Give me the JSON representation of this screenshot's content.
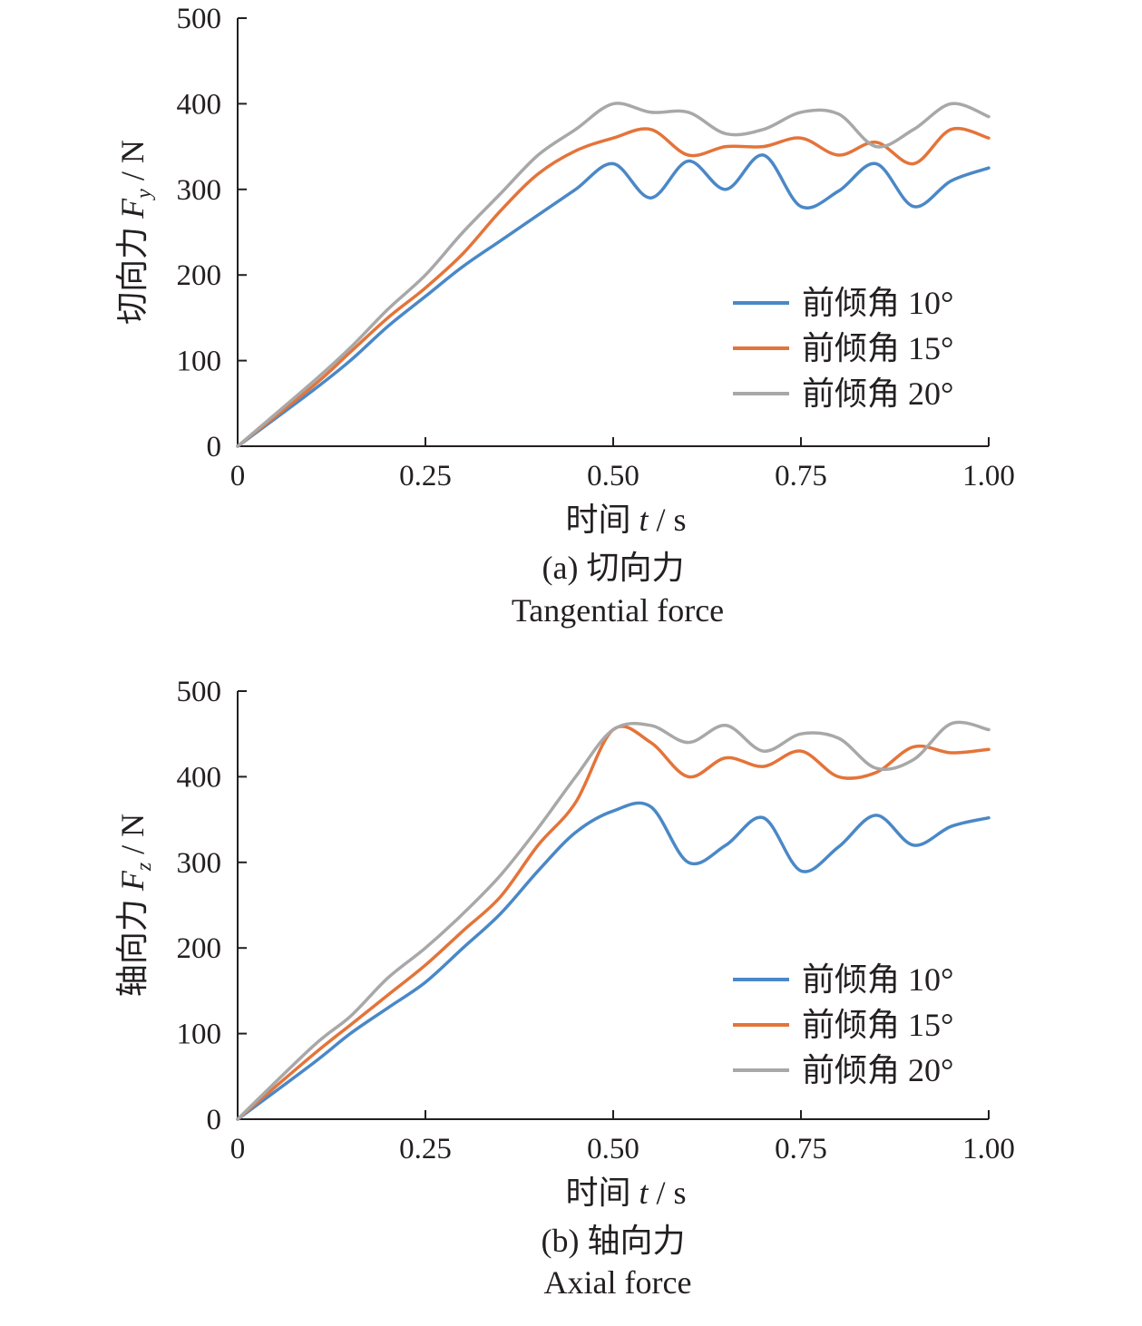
{
  "colors": {
    "s10": "#4a88c7",
    "s15": "#e4743a",
    "s20": "#a8a8a8",
    "axis": "#231f20"
  },
  "chart_data": [
    {
      "type": "line",
      "caption_label": "(a) 切向力",
      "caption_en": "Tangential force",
      "xlabel_text": "时间",
      "xlabel_var": "t",
      "xlabel_unit": " / s",
      "ylabel_text": "切向力",
      "ylabel_var": "F",
      "ylabel_sub": "y",
      "ylabel_unit": " / N",
      "xlim": [
        0,
        1.0
      ],
      "ylim": [
        0,
        500
      ],
      "xticks": [
        "0",
        "0.25",
        "0.50",
        "0.75",
        "1.00"
      ],
      "xtick_values": [
        0,
        0.25,
        0.5,
        0.75,
        1.0
      ],
      "yticks": [
        "0",
        "100",
        "200",
        "300",
        "400",
        "500"
      ],
      "ytick_values": [
        0,
        100,
        200,
        300,
        400,
        500
      ],
      "grid": false,
      "legend_position": "middle-right",
      "series": [
        {
          "name": "前倾角 10°",
          "color_key": "s10",
          "points": [
            [
              0,
              0
            ],
            [
              0.1,
              65
            ],
            [
              0.15,
              100
            ],
            [
              0.2,
              140
            ],
            [
              0.25,
              175
            ],
            [
              0.3,
              210
            ],
            [
              0.35,
              240
            ],
            [
              0.4,
              270
            ],
            [
              0.45,
              300
            ],
            [
              0.5,
              330
            ],
            [
              0.55,
              290
            ],
            [
              0.6,
              333
            ],
            [
              0.65,
              300
            ],
            [
              0.7,
              340
            ],
            [
              0.75,
              280
            ],
            [
              0.8,
              298
            ],
            [
              0.85,
              330
            ],
            [
              0.9,
              280
            ],
            [
              0.95,
              310
            ],
            [
              1.0,
              325
            ]
          ]
        },
        {
          "name": "前倾角 15°",
          "color_key": "s15",
          "points": [
            [
              0,
              0
            ],
            [
              0.1,
              70
            ],
            [
              0.15,
              110
            ],
            [
              0.2,
              150
            ],
            [
              0.25,
              185
            ],
            [
              0.3,
              225
            ],
            [
              0.35,
              275
            ],
            [
              0.4,
              318
            ],
            [
              0.45,
              345
            ],
            [
              0.5,
              360
            ],
            [
              0.55,
              370
            ],
            [
              0.6,
              340
            ],
            [
              0.65,
              350
            ],
            [
              0.7,
              350
            ],
            [
              0.75,
              360
            ],
            [
              0.8,
              340
            ],
            [
              0.85,
              355
            ],
            [
              0.9,
              330
            ],
            [
              0.95,
              370
            ],
            [
              1.0,
              360
            ]
          ]
        },
        {
          "name": "前倾角 20°",
          "color_key": "s20",
          "points": [
            [
              0,
              0
            ],
            [
              0.1,
              75
            ],
            [
              0.15,
              115
            ],
            [
              0.2,
              160
            ],
            [
              0.25,
              200
            ],
            [
              0.3,
              250
            ],
            [
              0.35,
              295
            ],
            [
              0.4,
              340
            ],
            [
              0.45,
              370
            ],
            [
              0.5,
              400
            ],
            [
              0.55,
              390
            ],
            [
              0.6,
              390
            ],
            [
              0.65,
              365
            ],
            [
              0.7,
              370
            ],
            [
              0.75,
              390
            ],
            [
              0.8,
              388
            ],
            [
              0.85,
              350
            ],
            [
              0.9,
              370
            ],
            [
              0.95,
              400
            ],
            [
              1.0,
              385
            ]
          ]
        }
      ]
    },
    {
      "type": "line",
      "caption_label": "(b) 轴向力",
      "caption_en": "Axial force",
      "xlabel_text": "时间",
      "xlabel_var": "t",
      "xlabel_unit": " / s",
      "ylabel_text": "轴向力",
      "ylabel_var": "F",
      "ylabel_sub": "z",
      "ylabel_unit": " / N",
      "xlim": [
        0,
        1.0
      ],
      "ylim": [
        0,
        500
      ],
      "xticks": [
        "0",
        "0.25",
        "0.50",
        "0.75",
        "1.00"
      ],
      "xtick_values": [
        0,
        0.25,
        0.5,
        0.75,
        1.0
      ],
      "yticks": [
        "0",
        "100",
        "200",
        "300",
        "400",
        "500"
      ],
      "ytick_values": [
        0,
        100,
        200,
        300,
        400,
        500
      ],
      "grid": false,
      "legend_position": "lower-right",
      "series": [
        {
          "name": "前倾角 10°",
          "color_key": "s10",
          "points": [
            [
              0,
              0
            ],
            [
              0.1,
              65
            ],
            [
              0.15,
              100
            ],
            [
              0.2,
              130
            ],
            [
              0.25,
              160
            ],
            [
              0.3,
              200
            ],
            [
              0.35,
              240
            ],
            [
              0.4,
              290
            ],
            [
              0.45,
              335
            ],
            [
              0.5,
              360
            ],
            [
              0.55,
              365
            ],
            [
              0.6,
              300
            ],
            [
              0.65,
              320
            ],
            [
              0.7,
              352
            ],
            [
              0.75,
              290
            ],
            [
              0.8,
              318
            ],
            [
              0.85,
              355
            ],
            [
              0.9,
              320
            ],
            [
              0.95,
              342
            ],
            [
              1.0,
              352
            ]
          ]
        },
        {
          "name": "前倾角 15°",
          "color_key": "s15",
          "points": [
            [
              0,
              0
            ],
            [
              0.1,
              75
            ],
            [
              0.15,
              110
            ],
            [
              0.2,
              145
            ],
            [
              0.25,
              180
            ],
            [
              0.3,
              220
            ],
            [
              0.35,
              260
            ],
            [
              0.4,
              320
            ],
            [
              0.45,
              370
            ],
            [
              0.5,
              455
            ],
            [
              0.55,
              440
            ],
            [
              0.6,
              400
            ],
            [
              0.65,
              422
            ],
            [
              0.7,
              412
            ],
            [
              0.75,
              430
            ],
            [
              0.8,
              400
            ],
            [
              0.85,
              405
            ],
            [
              0.9,
              435
            ],
            [
              0.95,
              428
            ],
            [
              1.0,
              432
            ]
          ]
        },
        {
          "name": "前倾角 20°",
          "color_key": "s20",
          "points": [
            [
              0,
              0
            ],
            [
              0.1,
              85
            ],
            [
              0.15,
              120
            ],
            [
              0.2,
              165
            ],
            [
              0.25,
              200
            ],
            [
              0.3,
              240
            ],
            [
              0.35,
              285
            ],
            [
              0.4,
              340
            ],
            [
              0.45,
              400
            ],
            [
              0.5,
              455
            ],
            [
              0.55,
              460
            ],
            [
              0.6,
              440
            ],
            [
              0.65,
              460
            ],
            [
              0.7,
              430
            ],
            [
              0.75,
              450
            ],
            [
              0.8,
              445
            ],
            [
              0.85,
              410
            ],
            [
              0.9,
              420
            ],
            [
              0.95,
              462
            ],
            [
              1.0,
              455
            ]
          ]
        }
      ]
    }
  ]
}
